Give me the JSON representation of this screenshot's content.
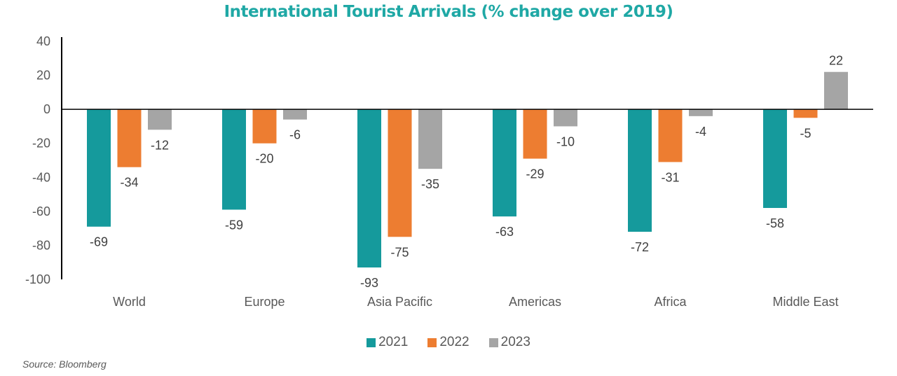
{
  "chart_data": {
    "type": "bar",
    "title": "International Tourist Arrivals (% change over 2019)",
    "xlabel": "",
    "ylabel": "",
    "categories": [
      "World",
      "Europe",
      "Asia Pacific",
      "Americas",
      "Africa",
      "Middle East"
    ],
    "series": [
      {
        "name": "2021",
        "color": "#159A9C",
        "values": [
          -69,
          -59,
          -93,
          -63,
          -72,
          -58
        ]
      },
      {
        "name": "2022",
        "color": "#ED7D31",
        "values": [
          -34,
          -20,
          -75,
          -29,
          -31,
          -5
        ]
      },
      {
        "name": "2023",
        "color": "#A5A5A5",
        "values": [
          -12,
          -6,
          -35,
          -10,
          -4,
          22
        ]
      }
    ],
    "ylim": [
      -100,
      40
    ],
    "yticks": [
      40,
      20,
      0,
      -20,
      -40,
      -60,
      -80,
      -100
    ],
    "grid": false,
    "legend_position": "bottom",
    "data_labels": true
  },
  "title_color": "#1FA8A5",
  "source": "Source: Bloomberg"
}
